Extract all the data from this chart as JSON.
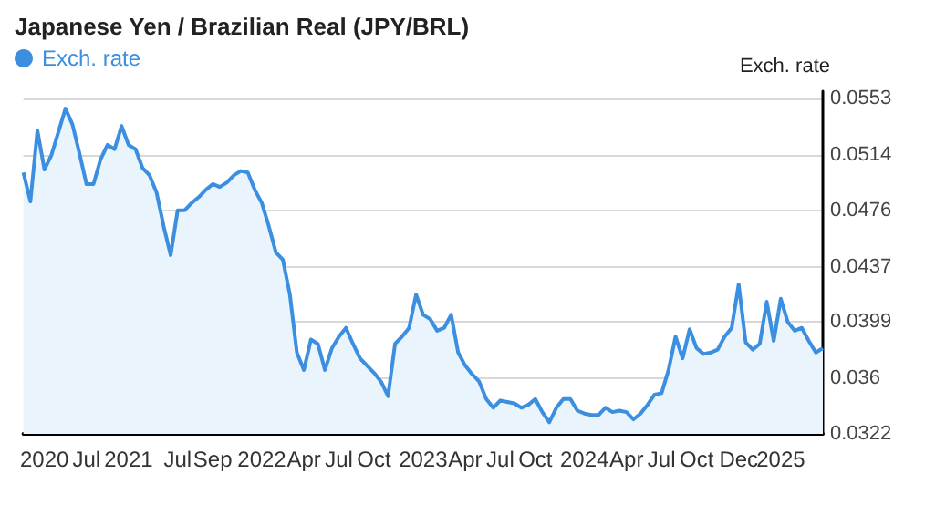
{
  "chart_data": {
    "type": "area",
    "title": "Japanese Yen / Brazilian Real (JPY/BRL)",
    "ylabel": "Exch. rate",
    "legend": "top left",
    "grid": "y",
    "tick_labels": "xy",
    "categories": [
      null,
      null,
      null,
      "2020",
      null,
      null,
      null,
      null,
      null,
      "Jul",
      null,
      null,
      null,
      null,
      null,
      "2021",
      null,
      null,
      null,
      null,
      null,
      null,
      "Jul",
      null,
      null,
      null,
      null,
      "Sep",
      null,
      null,
      null,
      null,
      null,
      null,
      "2022",
      null,
      null,
      null,
      null,
      null,
      "Apr",
      null,
      null,
      null,
      null,
      "Jul",
      null,
      null,
      null,
      null,
      "Oct",
      null,
      null,
      null,
      null,
      null,
      null,
      "2023",
      null,
      null,
      null,
      null,
      null,
      "Apr",
      null,
      null,
      null,
      null,
      "Jul",
      null,
      null,
      null,
      null,
      "Oct",
      null,
      null,
      null,
      null,
      null,
      null,
      "2024",
      null,
      null,
      null,
      null,
      null,
      "Apr",
      null,
      null,
      null,
      null,
      "Jul",
      null,
      null,
      null,
      null,
      "Oct",
      null,
      null,
      null,
      null,
      null,
      "Dec",
      null,
      null,
      null,
      null,
      null,
      "2025",
      null,
      null,
      null,
      null,
      null,
      null
    ],
    "series": [
      {
        "name": "Exch. rate",
        "color": "#3b8ee0",
        "values": [
          0.0502,
          0.0482,
          0.0531,
          0.0504,
          0.0514,
          0.053,
          0.0546,
          0.0535,
          0.0515,
          0.0494,
          0.0494,
          0.0511,
          0.0521,
          0.0518,
          0.0534,
          0.0521,
          0.0518,
          0.0505,
          0.05,
          0.0488,
          0.0465,
          0.0445,
          0.0476,
          0.0476,
          0.0481,
          0.0485,
          0.049,
          0.0494,
          0.0492,
          0.0495,
          0.05,
          0.0503,
          0.0502,
          0.049,
          0.0481,
          0.0465,
          0.0447,
          0.0442,
          0.0418,
          0.0378,
          0.0366,
          0.0387,
          0.0384,
          0.0366,
          0.0381,
          0.0389,
          0.0395,
          0.0384,
          0.0374,
          0.0369,
          0.0364,
          0.0358,
          0.0348,
          0.0384,
          0.0389,
          0.0395,
          0.0418,
          0.0404,
          0.0401,
          0.0393,
          0.0395,
          0.0404,
          0.0378,
          0.0369,
          0.0363,
          0.0358,
          0.0346,
          0.034,
          0.0345,
          0.0344,
          0.0343,
          0.034,
          0.0342,
          0.0346,
          0.0337,
          0.033,
          0.034,
          0.0346,
          0.0346,
          0.0338,
          0.0336,
          0.0335,
          0.0335,
          0.034,
          0.0337,
          0.0338,
          0.0337,
          0.0332,
          0.0336,
          0.0342,
          0.0349,
          0.035,
          0.0366,
          0.0389,
          0.0374,
          0.0394,
          0.0381,
          0.0377,
          0.0378,
          0.038,
          0.0389,
          0.0395,
          0.0425,
          0.0385,
          0.038,
          0.0384,
          0.0413,
          0.0386,
          0.0415,
          0.0399,
          0.0393,
          0.0395,
          0.0386,
          0.0378,
          0.0381
        ]
      }
    ],
    "ylim": [
      0.0322,
      0.0558
    ],
    "yticks": [
      0.0322,
      0.036,
      0.0399,
      0.0437,
      0.0476,
      0.0514,
      0.0553
    ]
  }
}
